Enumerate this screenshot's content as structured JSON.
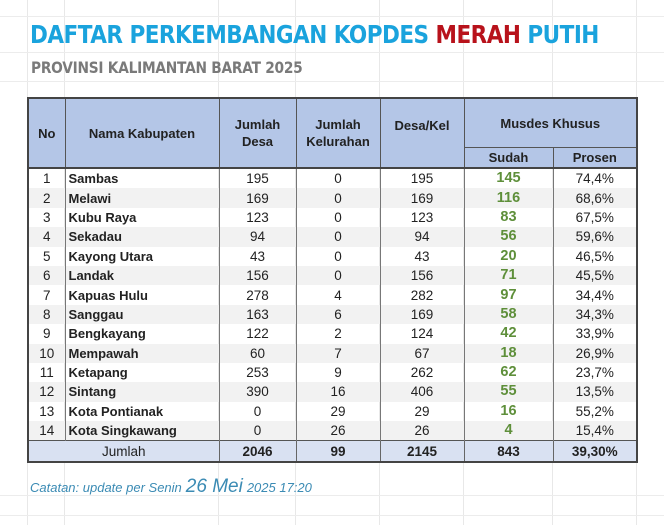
{
  "title": {
    "part1": "DAFTAR PERKEMBANGAN KOPDES ",
    "part_red": "MERAH",
    "part2": " PUTIH",
    "subtitle": "PROVINSI KALIMANTAN BARAT 2025"
  },
  "colors": {
    "title_blue": "#1aa3dd",
    "title_red": "#b8121b",
    "header_bg": "#b4c6e7",
    "total_bg": "#d9e1f2",
    "sudah_green": "#5e8f3a",
    "note_blue": "#3b8bb4"
  },
  "table": {
    "headers": {
      "no": "No",
      "nama": "Nama Kabupaten",
      "jumlah_desa": "Jumlah Desa",
      "jumlah_kelurahan": "Jumlah Kelurahan",
      "desa_kel": "Desa/Kel",
      "musdes": "Musdes Khusus",
      "sudah": "Sudah",
      "prosen": "Prosen"
    },
    "rows": [
      {
        "no": "1",
        "nama": "Sambas",
        "desa": "195",
        "kelurahan": "0",
        "desakel": "195",
        "sudah": "145",
        "prosen": "74,4%"
      },
      {
        "no": "2",
        "nama": "Melawi",
        "desa": "169",
        "kelurahan": "0",
        "desakel": "169",
        "sudah": "116",
        "prosen": "68,6%"
      },
      {
        "no": "3",
        "nama": "Kubu Raya",
        "desa": "123",
        "kelurahan": "0",
        "desakel": "123",
        "sudah": "83",
        "prosen": "67,5%"
      },
      {
        "no": "4",
        "nama": "Sekadau",
        "desa": "94",
        "kelurahan": "0",
        "desakel": "94",
        "sudah": "56",
        "prosen": "59,6%"
      },
      {
        "no": "5",
        "nama": "Kayong Utara",
        "desa": "43",
        "kelurahan": "0",
        "desakel": "43",
        "sudah": "20",
        "prosen": "46,5%"
      },
      {
        "no": "6",
        "nama": "Landak",
        "desa": "156",
        "kelurahan": "0",
        "desakel": "156",
        "sudah": "71",
        "prosen": "45,5%"
      },
      {
        "no": "7",
        "nama": "Kapuas Hulu",
        "desa": "278",
        "kelurahan": "4",
        "desakel": "282",
        "sudah": "97",
        "prosen": "34,4%"
      },
      {
        "no": "8",
        "nama": "Sanggau",
        "desa": "163",
        "kelurahan": "6",
        "desakel": "169",
        "sudah": "58",
        "prosen": "34,3%"
      },
      {
        "no": "9",
        "nama": "Bengkayang",
        "desa": "122",
        "kelurahan": "2",
        "desakel": "124",
        "sudah": "42",
        "prosen": "33,9%"
      },
      {
        "no": "10",
        "nama": "Mempawah",
        "desa": "60",
        "kelurahan": "7",
        "desakel": "67",
        "sudah": "18",
        "prosen": "26,9%"
      },
      {
        "no": "11",
        "nama": "Ketapang",
        "desa": "253",
        "kelurahan": "9",
        "desakel": "262",
        "sudah": "62",
        "prosen": "23,7%"
      },
      {
        "no": "12",
        "nama": "Sintang",
        "desa": "390",
        "kelurahan": "16",
        "desakel": "406",
        "sudah": "55",
        "prosen": "13,5%"
      },
      {
        "no": "13",
        "nama": "Kota Pontianak",
        "desa": "0",
        "kelurahan": "29",
        "desakel": "29",
        "sudah": "16",
        "prosen": "55,2%"
      },
      {
        "no": "14",
        "nama": "Kota Singkawang",
        "desa": "0",
        "kelurahan": "26",
        "desakel": "26",
        "sudah": "4",
        "prosen": "15,4%"
      }
    ],
    "total": {
      "label": "Jumlah",
      "desa": "2046",
      "kelurahan": "99",
      "desakel": "2145",
      "sudah": "843",
      "prosen": "39,30%"
    }
  },
  "note": {
    "prefix": "Catatan: update per Senin",
    "date": "26 Mei",
    "suffix": "2025 17:20"
  }
}
